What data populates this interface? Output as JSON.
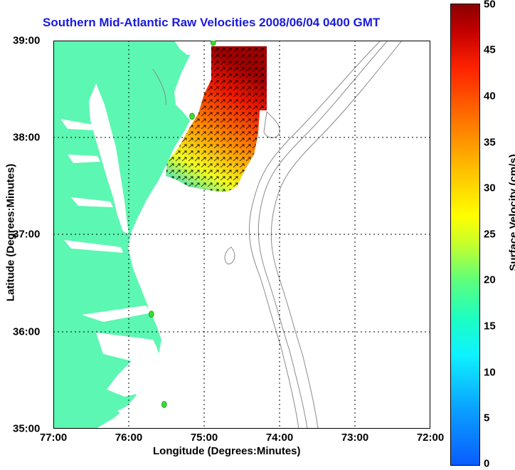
{
  "title": "Southern Mid-Atlantic Raw Velocities 2008/06/04 0400 GMT",
  "x_axis": {
    "label": "Longitude (Degrees:Minutes)",
    "ticks": [
      "77:00",
      "76:00",
      "75:00",
      "74:00",
      "73:00",
      "72:00"
    ]
  },
  "y_axis": {
    "label": "Latitude (Degrees:Minutes)",
    "ticks": [
      "39:00",
      "38:00",
      "37:00",
      "36:00",
      "35:00"
    ]
  },
  "colorbar": {
    "label": "Surface Velocity (cm/s)",
    "ticks": [
      "50",
      "45",
      "40",
      "35",
      "30",
      "25",
      "20",
      "15",
      "10",
      "5",
      "0"
    ],
    "range": [
      0,
      50
    ]
  },
  "colors": {
    "land": "#5cf7b2",
    "ocean": "#ffffff",
    "title": "#1a1adc",
    "station": "#33dd33",
    "contour": "#888888"
  },
  "stations": [
    {
      "lon": -74.88,
      "lat": 38.98
    },
    {
      "lon": -75.16,
      "lat": 38.22
    },
    {
      "lon": -75.7,
      "lat": 36.18
    },
    {
      "lon": -75.53,
      "lat": 35.25
    }
  ],
  "map_extent": {
    "lon": [
      -77,
      -72
    ],
    "lat": [
      35,
      39
    ]
  }
}
